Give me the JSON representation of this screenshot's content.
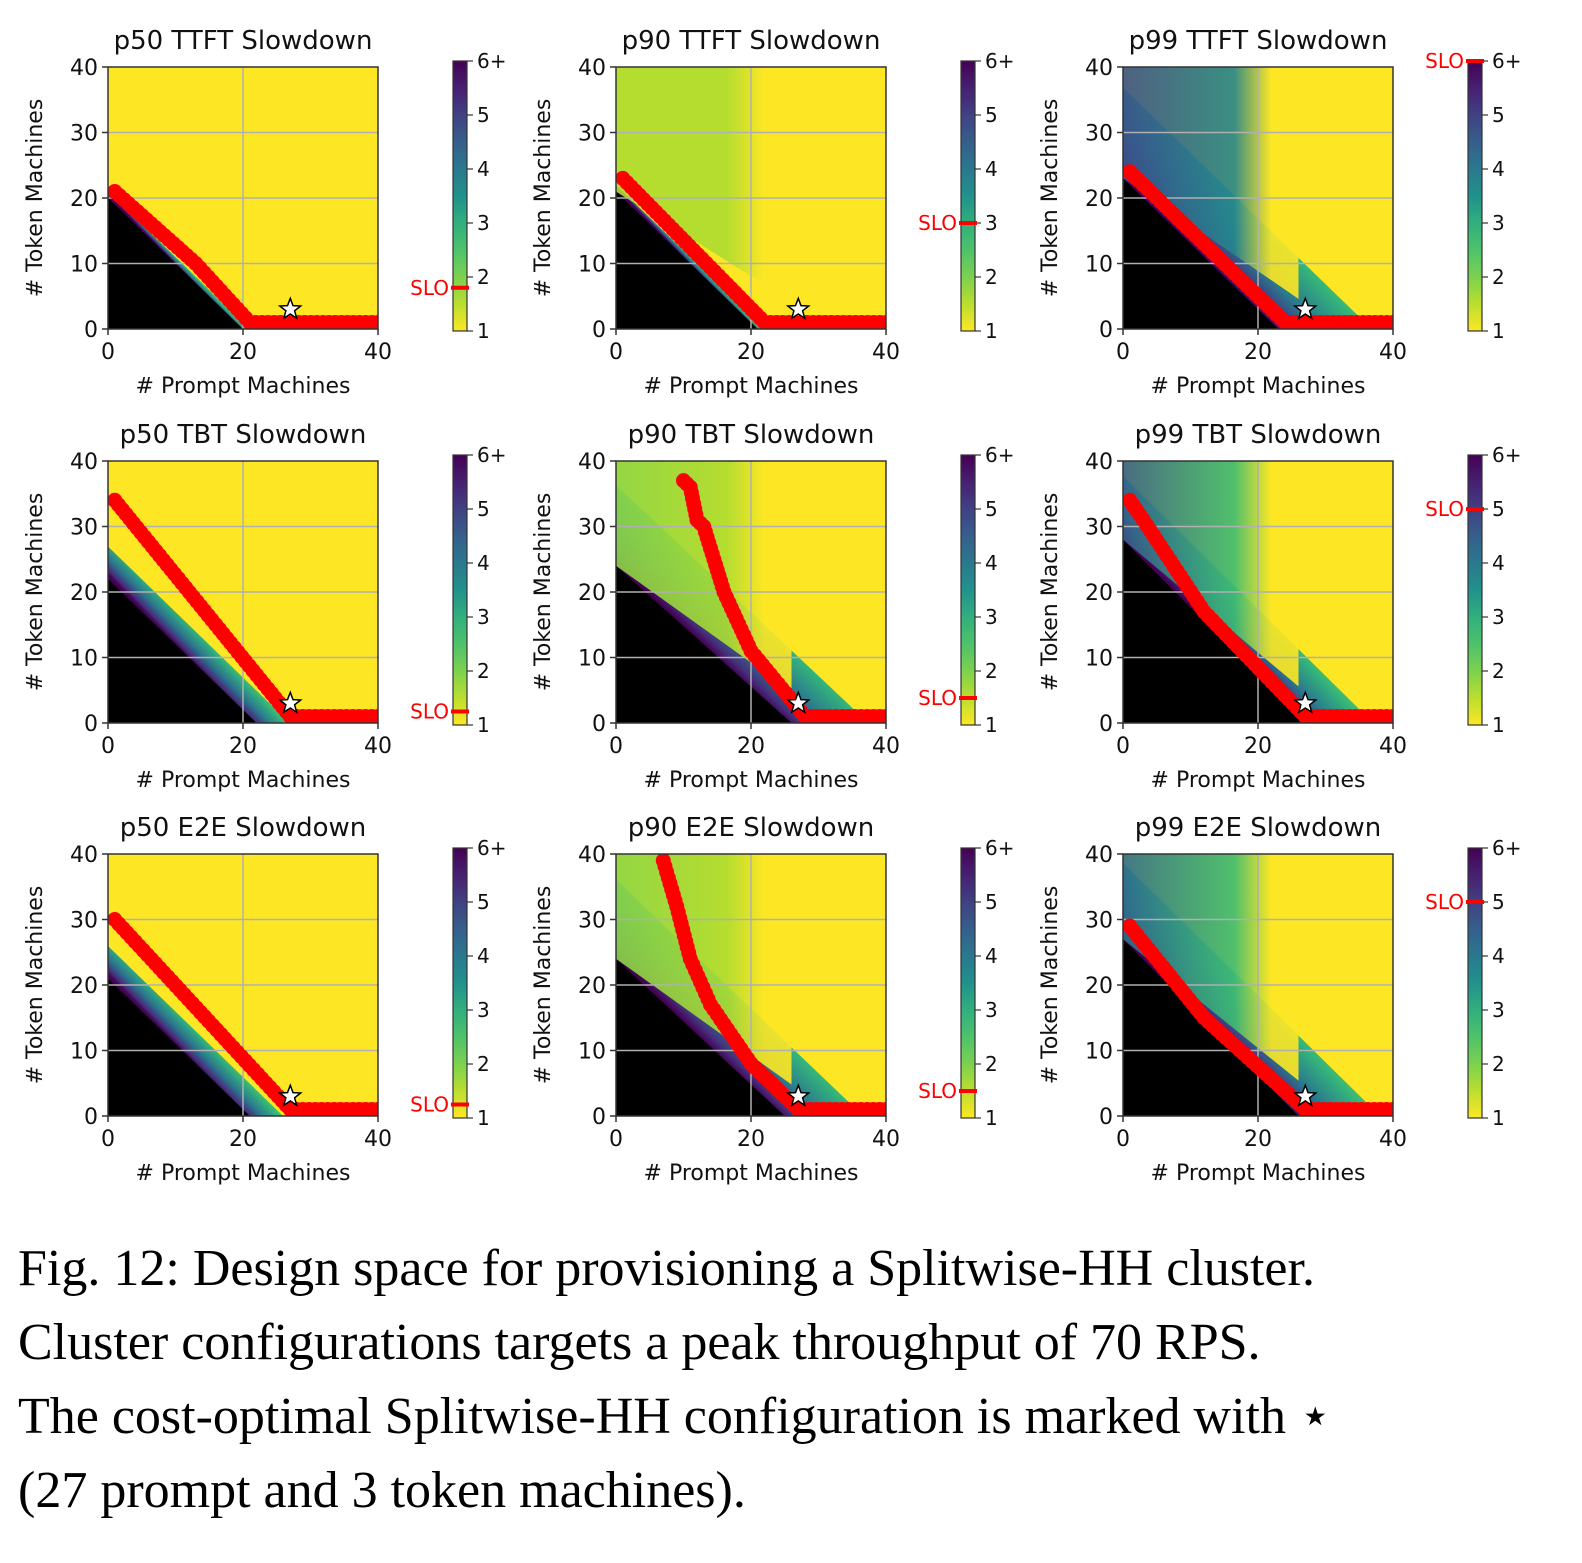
{
  "figure": {
    "x_axis_label": "# Prompt Machines",
    "y_axis_label": "# Token Machines",
    "x_ticks": [
      "0",
      "20",
      "40"
    ],
    "y_ticks": [
      "0",
      "10",
      "20",
      "30",
      "40"
    ],
    "colorbar_ticks": [
      "1",
      "2",
      "3",
      "4",
      "5",
      "6+"
    ],
    "slo_label": "SLO",
    "colormap": "viridis_r",
    "colors": {
      "yellow": "#fde725",
      "infeasible": "#000000",
      "slo_points": "#ff0000",
      "optimal_marker": "#ffffff"
    }
  },
  "chart_data": [
    {
      "type": "heatmap",
      "title": "p50 TTFT Slowdown",
      "xlim": [
        0,
        40
      ],
      "ylim": [
        0,
        40
      ],
      "grid": true,
      "colorbar_range": [
        1,
        6
      ],
      "slo": 1.8,
      "slo_boundary": [
        [
          1,
          21
        ],
        [
          13,
          10
        ],
        [
          21,
          1
        ],
        [
          40,
          1
        ]
      ],
      "infeasible_boundary": [
        [
          0,
          20
        ],
        [
          20,
          0
        ]
      ],
      "optimal": [
        27,
        3
      ]
    },
    {
      "type": "heatmap",
      "title": "p90 TTFT Slowdown",
      "xlim": [
        0,
        40
      ],
      "ylim": [
        0,
        40
      ],
      "grid": true,
      "colorbar_range": [
        1,
        6
      ],
      "slo": 3.0,
      "slo_boundary": [
        [
          1,
          23
        ],
        [
          22,
          1
        ],
        [
          40,
          1
        ]
      ],
      "infeasible_boundary": [
        [
          0,
          21
        ],
        [
          21,
          0
        ]
      ],
      "optimal": [
        27,
        3
      ]
    },
    {
      "type": "heatmap",
      "title": "p99 TTFT Slowdown",
      "xlim": [
        0,
        40
      ],
      "ylim": [
        0,
        40
      ],
      "grid": true,
      "colorbar_range": [
        1,
        6
      ],
      "slo": 6.0,
      "slo_boundary": [
        [
          1,
          24
        ],
        [
          12,
          13
        ],
        [
          19,
          6
        ],
        [
          24,
          1
        ],
        [
          40,
          1
        ]
      ],
      "infeasible_boundary": [
        [
          0,
          23
        ],
        [
          23,
          0
        ]
      ],
      "optimal": [
        27,
        3
      ]
    },
    {
      "type": "heatmap",
      "title": "p50 TBT Slowdown",
      "xlim": [
        0,
        40
      ],
      "ylim": [
        0,
        40
      ],
      "grid": true,
      "colorbar_range": [
        1,
        6
      ],
      "slo": 1.25,
      "slo_boundary": [
        [
          1,
          34
        ],
        [
          27,
          1
        ],
        [
          40,
          1
        ]
      ],
      "infeasible_boundary": [
        [
          0,
          22
        ],
        [
          22,
          0
        ]
      ],
      "optimal": [
        27,
        3
      ]
    },
    {
      "type": "heatmap",
      "title": "p90 TBT Slowdown",
      "xlim": [
        0,
        40
      ],
      "ylim": [
        0,
        40
      ],
      "grid": true,
      "colorbar_range": [
        1,
        6
      ],
      "slo": 1.5,
      "slo_boundary": [
        [
          10,
          37
        ],
        [
          11,
          36
        ],
        [
          12,
          31
        ],
        [
          13,
          30
        ],
        [
          16,
          20
        ],
        [
          20,
          11
        ],
        [
          28,
          1
        ],
        [
          40,
          1
        ]
      ],
      "infeasible_boundary": [
        [
          0,
          24
        ],
        [
          26,
          0
        ]
      ],
      "optimal": [
        27,
        3
      ]
    },
    {
      "type": "heatmap",
      "title": "p99 TBT Slowdown",
      "xlim": [
        0,
        40
      ],
      "ylim": [
        0,
        40
      ],
      "grid": true,
      "colorbar_range": [
        1,
        6
      ],
      "slo": 5.0,
      "slo_boundary": [
        [
          1,
          34
        ],
        [
          3,
          31
        ],
        [
          12,
          17
        ],
        [
          27,
          1
        ],
        [
          40,
          1
        ]
      ],
      "infeasible_boundary": [
        [
          0,
          28
        ],
        [
          27,
          0
        ]
      ],
      "optimal": [
        27,
        3
      ]
    },
    {
      "type": "heatmap",
      "title": "p50 E2E Slowdown",
      "xlim": [
        0,
        40
      ],
      "ylim": [
        0,
        40
      ],
      "grid": true,
      "colorbar_range": [
        1,
        6
      ],
      "slo": 1.25,
      "slo_boundary": [
        [
          1,
          30
        ],
        [
          27,
          1
        ],
        [
          40,
          1
        ]
      ],
      "infeasible_boundary": [
        [
          0,
          21
        ],
        [
          21,
          0
        ]
      ],
      "optimal": [
        27,
        3
      ]
    },
    {
      "type": "heatmap",
      "title": "p90 E2E Slowdown",
      "xlim": [
        0,
        40
      ],
      "ylim": [
        0,
        40
      ],
      "grid": true,
      "colorbar_range": [
        1,
        6
      ],
      "slo": 1.5,
      "slo_boundary": [
        [
          7,
          39
        ],
        [
          9,
          32
        ],
        [
          11,
          24
        ],
        [
          14,
          17
        ],
        [
          20,
          8
        ],
        [
          27,
          1
        ],
        [
          40,
          1
        ]
      ],
      "infeasible_boundary": [
        [
          0,
          24
        ],
        [
          25,
          0
        ]
      ],
      "optimal": [
        27,
        3
      ]
    },
    {
      "type": "heatmap",
      "title": "p99 E2E Slowdown",
      "xlim": [
        0,
        40
      ],
      "ylim": [
        0,
        40
      ],
      "grid": true,
      "colorbar_range": [
        1,
        6
      ],
      "slo": 5.0,
      "slo_boundary": [
        [
          1,
          29
        ],
        [
          12,
          15
        ],
        [
          27,
          1
        ],
        [
          40,
          1
        ]
      ],
      "infeasible_boundary": [
        [
          0,
          27
        ],
        [
          26,
          0
        ]
      ],
      "optimal": [
        27,
        3
      ]
    }
  ],
  "caption": {
    "lines": [
      "Fig. 12: Design space for provisioning a Splitwise-HH cluster.",
      "Cluster configurations targets a peak throughput of 70 RPS.",
      "The cost-optimal Splitwise-HH configuration is marked with ⋆",
      "(27 prompt and 3 token machines)."
    ]
  }
}
